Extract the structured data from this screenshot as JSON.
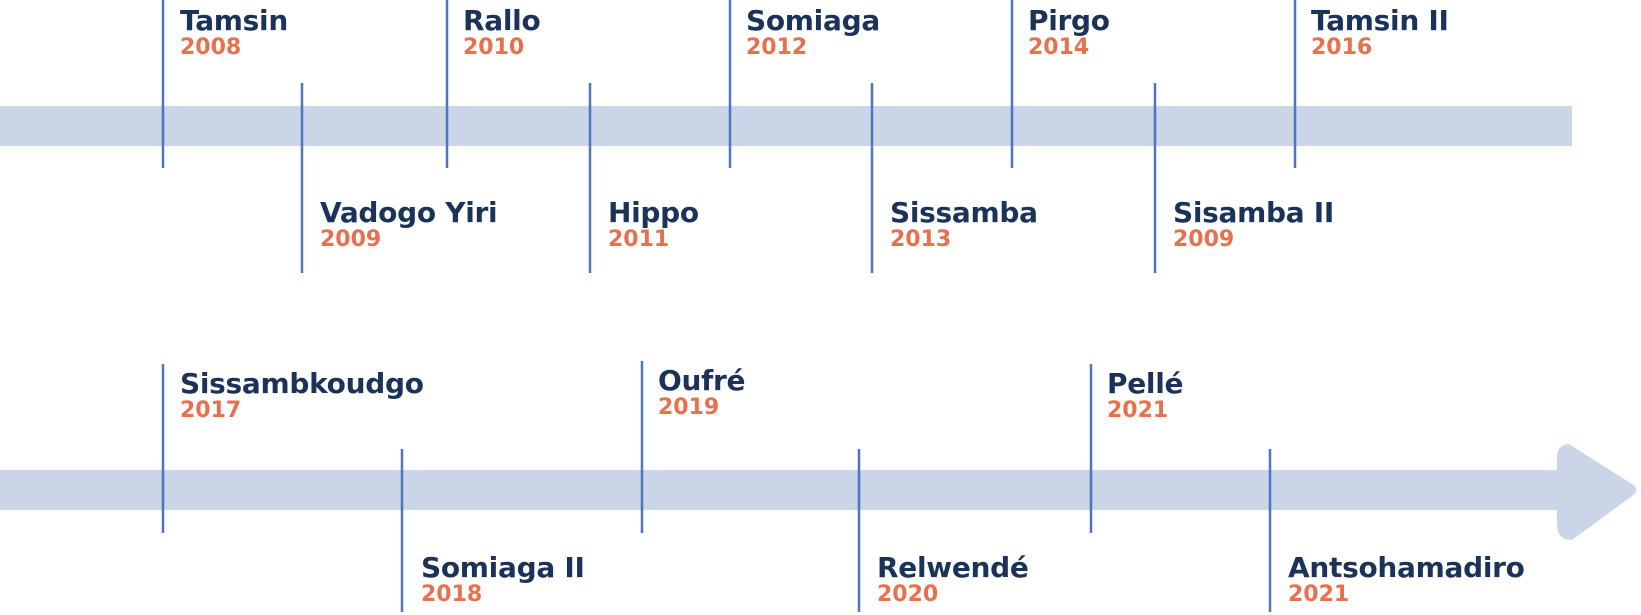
{
  "colors": {
    "band": "#cad5e8",
    "tick": "#4f75bd",
    "title": "#1b3358",
    "year": "#e8704c"
  },
  "timeline": {
    "row1": [
      {
        "title": "Tamsin",
        "year": "2008"
      },
      {
        "title": "Vadogo Yiri",
        "year": "2009"
      },
      {
        "title": "Rallo",
        "year": "2010"
      },
      {
        "title": "Hippo",
        "year": "2011"
      },
      {
        "title": "Somiaga",
        "year": "2012"
      },
      {
        "title": "Sissamba",
        "year": "2013"
      },
      {
        "title": "Pirgo",
        "year": "2014"
      },
      {
        "title": "Sisamba II",
        "year": "2009"
      },
      {
        "title": "Tamsin II",
        "year": "2016"
      }
    ],
    "row2": [
      {
        "title": "Sissambkoudgo",
        "year": "2017"
      },
      {
        "title": "Somiaga II",
        "year": "2018"
      },
      {
        "title": "Oufré",
        "year": "2019"
      },
      {
        "title": "Relwendé",
        "year": "2020"
      },
      {
        "title": "Pellé",
        "year": "2021"
      },
      {
        "title": "Antsohamadiro",
        "year": "2021"
      }
    ]
  }
}
